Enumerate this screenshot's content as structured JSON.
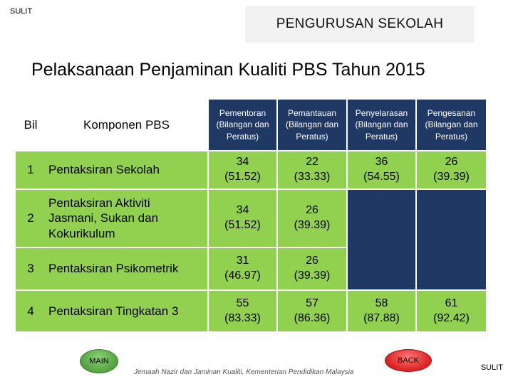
{
  "classification": "SULIT",
  "header_box": "PENGURUSAN SEKOLAH",
  "title": "Pelaksanaan Penjaminan Kualiti PBS Tahun 2015",
  "table": {
    "headers": {
      "bil": "Bil",
      "komponen": "Komponen PBS",
      "pementoran": [
        "Pementoran",
        "(Bilangan dan",
        "Peratus)"
      ],
      "pemantauan": [
        "Pemantauan",
        "(Bilangan dan",
        "Peratus)"
      ],
      "penyelarasan": [
        "Penyelarasan",
        "(Bilangan dan",
        "Peratus)"
      ],
      "pengesanan": [
        "Pengesanan",
        "(Bilangan dan",
        "Peratus)"
      ]
    },
    "rows": [
      {
        "bil": "1",
        "komponen": [
          "Pentaksiran Sekolah"
        ],
        "pementoran": [
          "34",
          "(51.52)"
        ],
        "pemantauan": [
          "22",
          "(33.33)"
        ],
        "penyelarasan": [
          "36",
          "(54.55)"
        ],
        "pengesanan": [
          "26",
          "(39.39)"
        ]
      },
      {
        "bil": "2",
        "komponen": [
          "Pentaksiran Aktiviti",
          "Jasmani, Sukan dan",
          "Kokurikulum"
        ],
        "pementoran": [
          "34",
          "(51.52)"
        ],
        "pemantauan": [
          "26",
          "(39.39)"
        ]
      },
      {
        "bil": "3",
        "komponen": [
          "Pentaksiran Psikometrik"
        ],
        "pementoran": [
          "31",
          "(46.97)"
        ],
        "pemantauan": [
          "26",
          "(39.39)"
        ]
      },
      {
        "bil": "4",
        "komponen": [
          "Pentaksiran Tingkatan 3"
        ],
        "pementoran": [
          "55",
          "(83.33)"
        ],
        "pemantauan": [
          "57",
          "(86.36)"
        ],
        "penyelarasan": [
          "58",
          "(87.88)"
        ],
        "pengesanan": [
          "61",
          "(92.42)"
        ]
      }
    ]
  },
  "buttons": {
    "main": "MAIN",
    "back": "BACK"
  },
  "footer": "Jemaah Nazir dan Jaminan Kualiti, Kementerian Pendidikan Malaysia",
  "colors": {
    "header_fill": "#1f3864",
    "row_fill": "#92d050",
    "main_button": "#5aa945",
    "back_button": "#e02a2a"
  }
}
